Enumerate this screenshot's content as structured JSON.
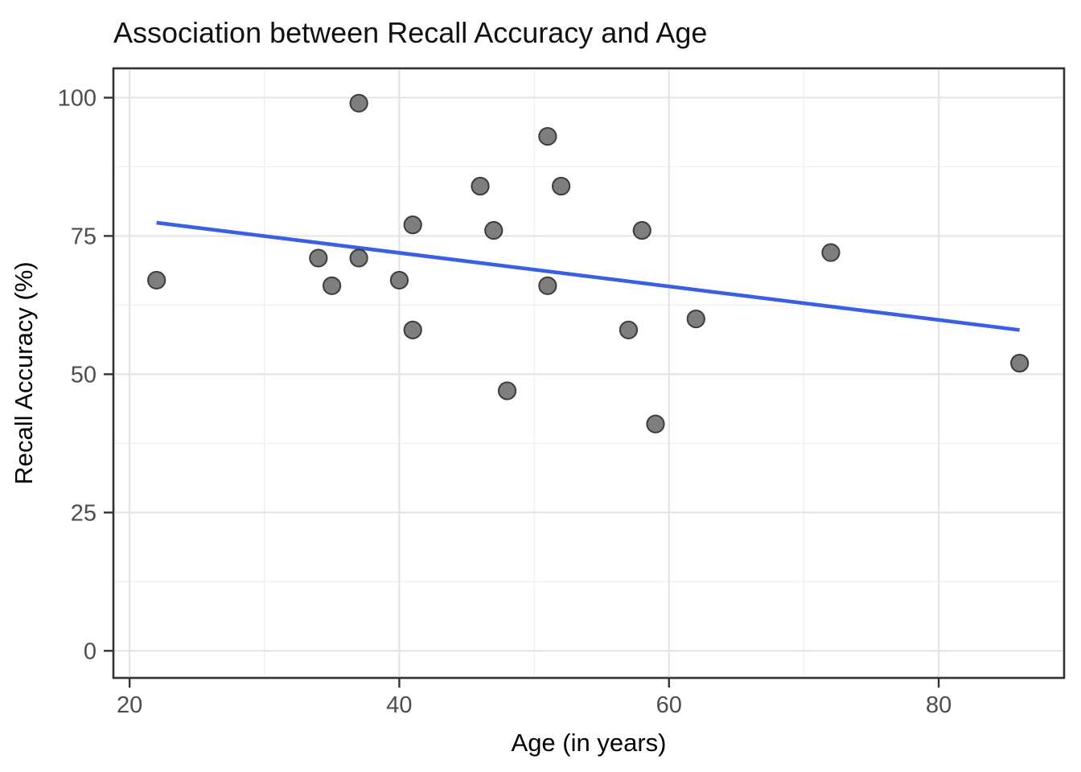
{
  "chart_data": {
    "type": "scatter",
    "title": "Association between Recall Accuracy and Age",
    "xlabel": "Age (in years)",
    "ylabel": "Recall Accuracy (%)",
    "legend": "none",
    "grid": "on",
    "xlim": [
      18.8,
      89.3
    ],
    "ylim": [
      -4.9,
      105.3
    ],
    "x_major_ticks": [
      20,
      40,
      60,
      80
    ],
    "y_major_ticks": [
      0,
      25,
      50,
      75,
      100
    ],
    "x_minor_gridlines": [
      30,
      50,
      70
    ],
    "y_minor_gridlines": [
      12.5,
      37.5,
      62.5,
      87.5
    ],
    "points": [
      {
        "age": 22,
        "accuracy": 67
      },
      {
        "age": 34,
        "accuracy": 71
      },
      {
        "age": 35,
        "accuracy": 66
      },
      {
        "age": 37,
        "accuracy": 71
      },
      {
        "age": 37,
        "accuracy": 99
      },
      {
        "age": 40,
        "accuracy": 67
      },
      {
        "age": 41,
        "accuracy": 58
      },
      {
        "age": 41,
        "accuracy": 77
      },
      {
        "age": 46,
        "accuracy": 84
      },
      {
        "age": 47,
        "accuracy": 76
      },
      {
        "age": 48,
        "accuracy": 47
      },
      {
        "age": 51,
        "accuracy": 66
      },
      {
        "age": 51,
        "accuracy": 93
      },
      {
        "age": 52,
        "accuracy": 84
      },
      {
        "age": 57,
        "accuracy": 58
      },
      {
        "age": 58,
        "accuracy": 76
      },
      {
        "age": 59,
        "accuracy": 41
      },
      {
        "age": 62,
        "accuracy": 60
      },
      {
        "age": 72,
        "accuracy": 72
      },
      {
        "age": 86,
        "accuracy": 52
      }
    ],
    "trend_line": {
      "type": "linear",
      "start": {
        "x": 22,
        "y": 77.4
      },
      "end": {
        "x": 86,
        "y": 58.0
      },
      "color": "#3A5FE5"
    },
    "styles": {
      "background": "#FFFFFF",
      "panel_border_color": "#333333",
      "grid_major_color": "#E4E4E4",
      "grid_minor_color": "#F0F0F0",
      "point_fill": "#7E7E7E",
      "point_stroke": "#3C3C3C",
      "tick_color": "#333333",
      "tick_label_color": "#4D4D4D",
      "title_color": "#111111"
    }
  }
}
